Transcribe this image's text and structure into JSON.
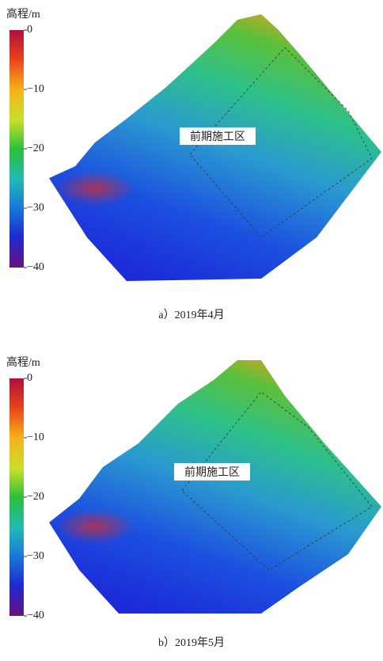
{
  "panels": [
    {
      "colorbar_label": "高程/m",
      "ticks": [
        {
          "value": 0,
          "label": "0"
        },
        {
          "value": -10,
          "label": "−10"
        },
        {
          "value": -20,
          "label": "−20"
        },
        {
          "value": -30,
          "label": "−30"
        },
        {
          "value": -40,
          "label": "−40"
        }
      ],
      "area_label": "前期施工区",
      "caption": "a）2019年4月"
    },
    {
      "colorbar_label": "高程/m",
      "ticks": [
        {
          "value": 0,
          "label": "0"
        },
        {
          "value": -10,
          "label": "−10"
        },
        {
          "value": -20,
          "label": "−20"
        },
        {
          "value": -30,
          "label": "−30"
        },
        {
          "value": -40,
          "label": "−40"
        }
      ],
      "area_label": "前期施工区",
      "caption": "b）2019年5月"
    }
  ]
}
